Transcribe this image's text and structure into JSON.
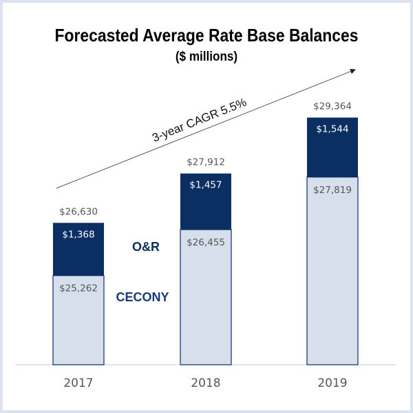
{
  "chart_data": {
    "type": "bar",
    "stacked": true,
    "title": "Forecasted Average Rate Base Balances",
    "subtitle": "($ millions)",
    "xlabel": "",
    "ylabel": "",
    "categories": [
      "2017",
      "2018",
      "2019"
    ],
    "series": [
      {
        "name": "CECONY",
        "values": [
          25262,
          26455,
          27819
        ],
        "labels": [
          "$25,262",
          "$26,455",
          "$27,819"
        ],
        "color": "#d6dfeb"
      },
      {
        "name": "O&R",
        "values": [
          1368,
          1457,
          1544
        ],
        "labels": [
          "$1,368",
          "$1,457",
          "$1,544"
        ],
        "color": "#0b2e63"
      }
    ],
    "totals": [
      26630,
      27912,
      29364
    ],
    "total_labels": [
      "$26,630",
      "$27,912",
      "$29,364"
    ],
    "ylim": [
      22948,
      30500
    ],
    "grid": false,
    "legend": {
      "placement": "inline-right-of-first-bar",
      "entries": [
        "O&R",
        "CECONY"
      ]
    },
    "annotation": {
      "text": "3-year CAGR 5.5%",
      "type": "arrow-rising"
    },
    "colors": {
      "o_and_r": "#0b2e63",
      "cecony": "#d6dfeb",
      "bar_border": "#0b2e63",
      "legend_text": "#1b3a7a",
      "label_text": "#555555",
      "axis_line": "#d0d4da"
    }
  }
}
